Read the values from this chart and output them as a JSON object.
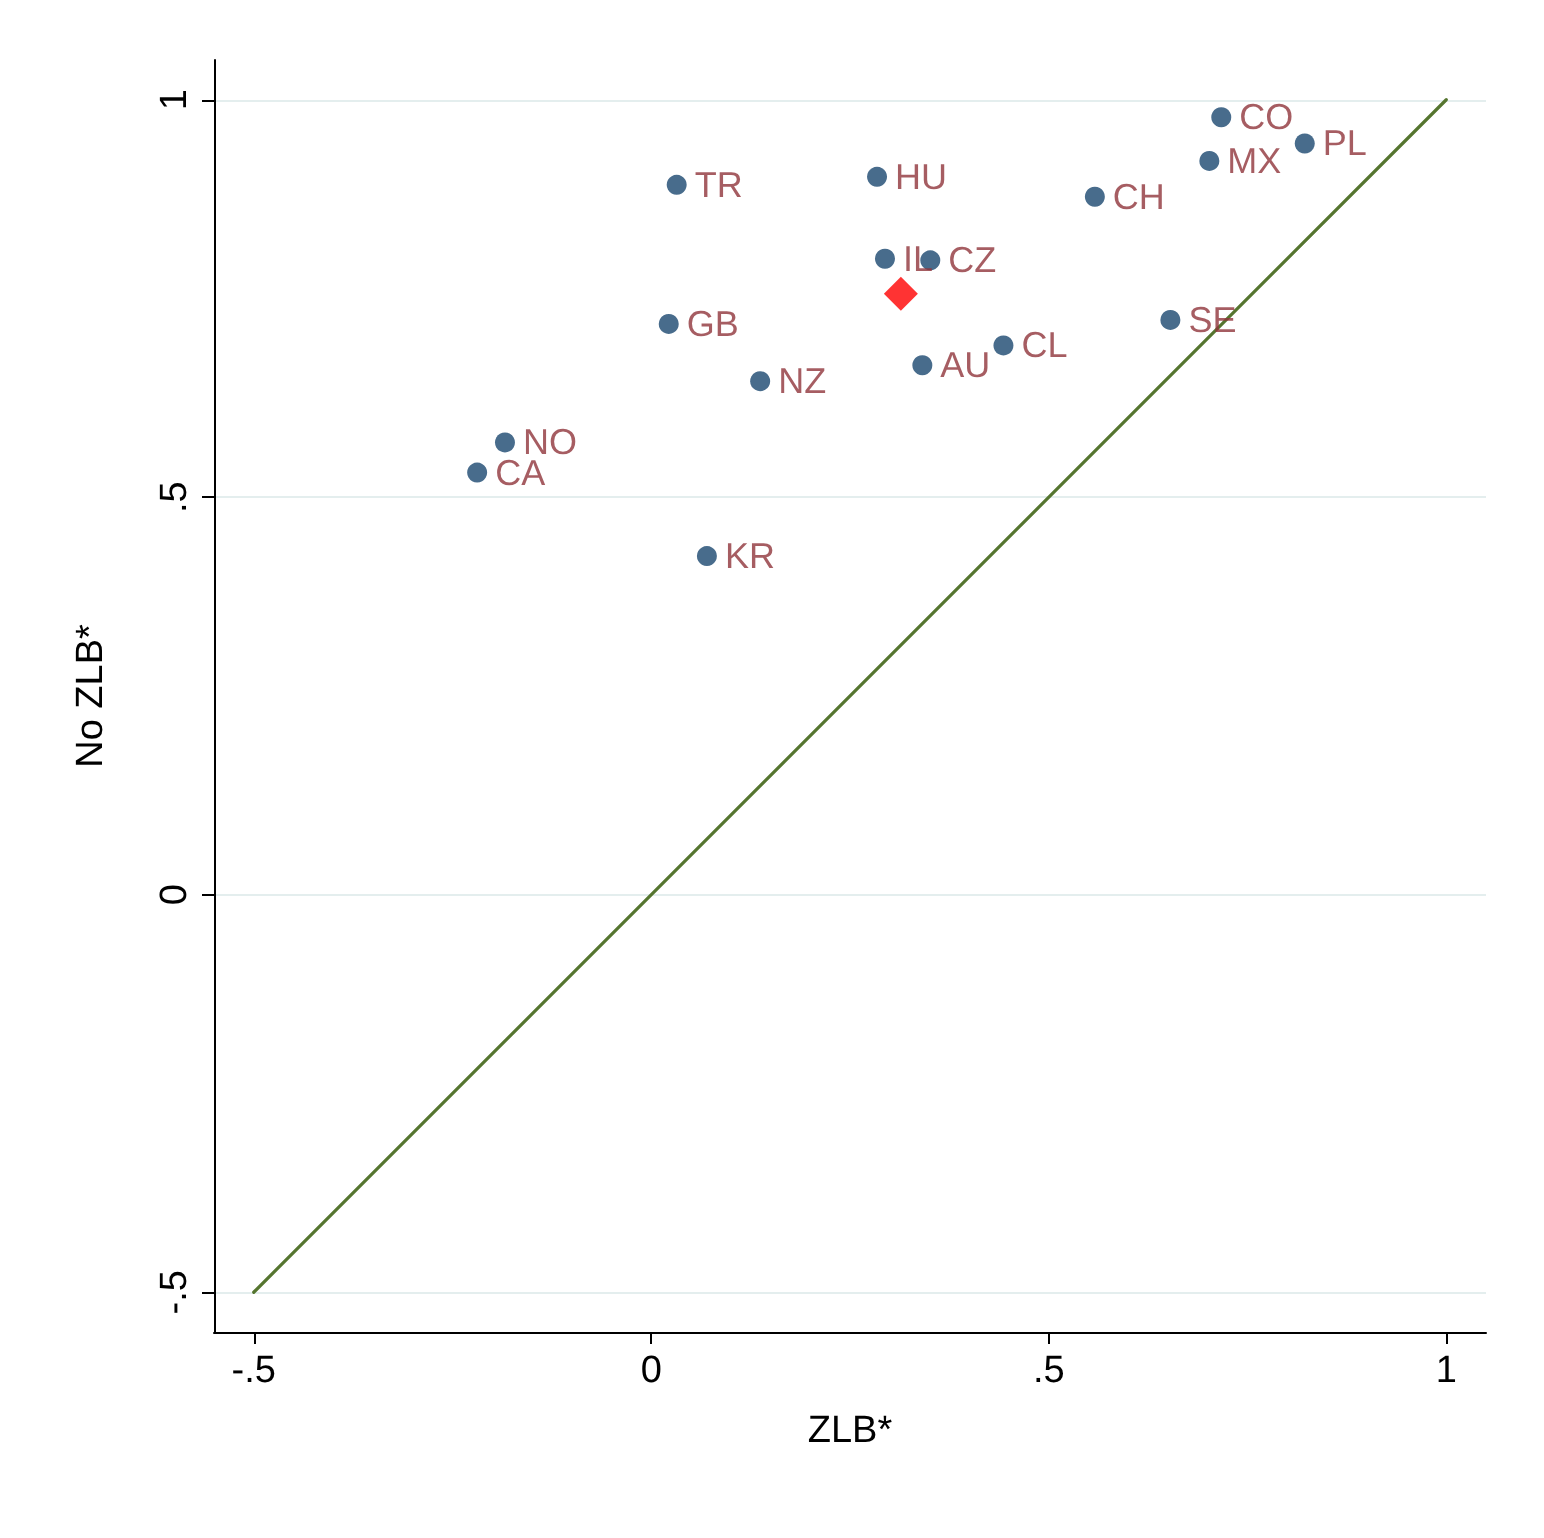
{
  "chart_data": {
    "type": "scatter",
    "xlabel": "ZLB*",
    "ylabel": "No ZLB*",
    "xlim": [
      -0.55,
      1.05
    ],
    "ylim": [
      -0.55,
      1.05
    ],
    "xticks": [
      {
        "value": -0.5,
        "label": "-.5"
      },
      0,
      {
        "value": 0.5,
        "label": ".5"
      },
      1
    ],
    "yticks": [
      {
        "value": -0.5,
        "label": "-.5"
      },
      0,
      {
        "value": 0.5,
        "label": ".5"
      },
      1
    ],
    "grid": "y",
    "marker": "circle",
    "series": [
      {
        "color": "#1a476f",
        "x": [
          0.717,
          0.822,
          0.702,
          0.558,
          0.284,
          0.032,
          0.294,
          0.351,
          0.022,
          0.653,
          0.443,
          0.341,
          0.137,
          -0.184,
          -0.219,
          0.07
        ],
        "values": [
          0.978,
          0.945,
          0.923,
          0.878,
          0.903,
          0.893,
          0.8,
          0.798,
          0.718,
          0.723,
          0.691,
          0.666,
          0.646,
          0.569,
          0.531,
          0.426
        ],
        "value_labels": [
          "CO",
          "PL",
          "MX",
          "CH",
          "HU",
          "TR",
          "IL",
          "CZ",
          "GB",
          "SE",
          "CL",
          "AU",
          "NZ",
          "NO",
          "CA",
          "KR"
        ]
      },
      {
        "type": "scatter",
        "color": "#ff0000",
        "marker": "diamond",
        "x": [
          0.314
        ],
        "values": [
          0.756
        ]
      },
      {
        "type": "line",
        "color": "#55752f",
        "marker": "none",
        "line_style": "solid",
        "x": [
          -0.5,
          1
        ],
        "values": [
          -0.5,
          1
        ]
      }
    ]
  }
}
